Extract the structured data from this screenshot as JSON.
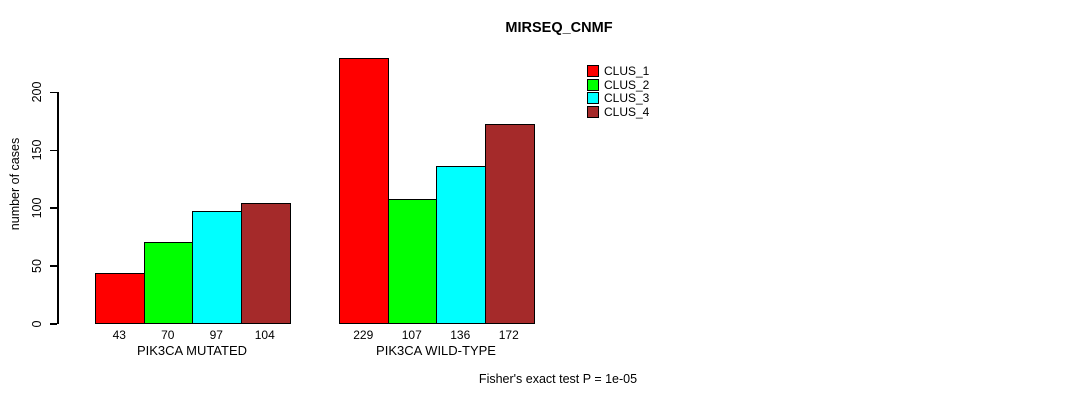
{
  "chart_data": {
    "type": "bar",
    "title": "MIRSEQ_CNMF",
    "xlabel": "",
    "ylabel": "number of cases",
    "yticks": [
      0,
      50,
      100,
      150,
      200
    ],
    "ylim": [
      0,
      240
    ],
    "grid": false,
    "legend_position": "top-right",
    "categories": [
      "PIK3CA MUTATED",
      "PIK3CA WILD-TYPE"
    ],
    "series": [
      {
        "name": "CLUS_1",
        "color": "#FF0000",
        "values": [
          43,
          229
        ]
      },
      {
        "name": "CLUS_2",
        "color": "#00FF00",
        "values": [
          70,
          107
        ]
      },
      {
        "name": "CLUS_3",
        "color": "#00FFFF",
        "values": [
          97,
          136
        ]
      },
      {
        "name": "CLUS_4",
        "color": "#A52A2A",
        "values": [
          104,
          172
        ]
      }
    ],
    "bar_value_labels": true,
    "annotation": "Fisher's exact test P = 1e-05"
  }
}
